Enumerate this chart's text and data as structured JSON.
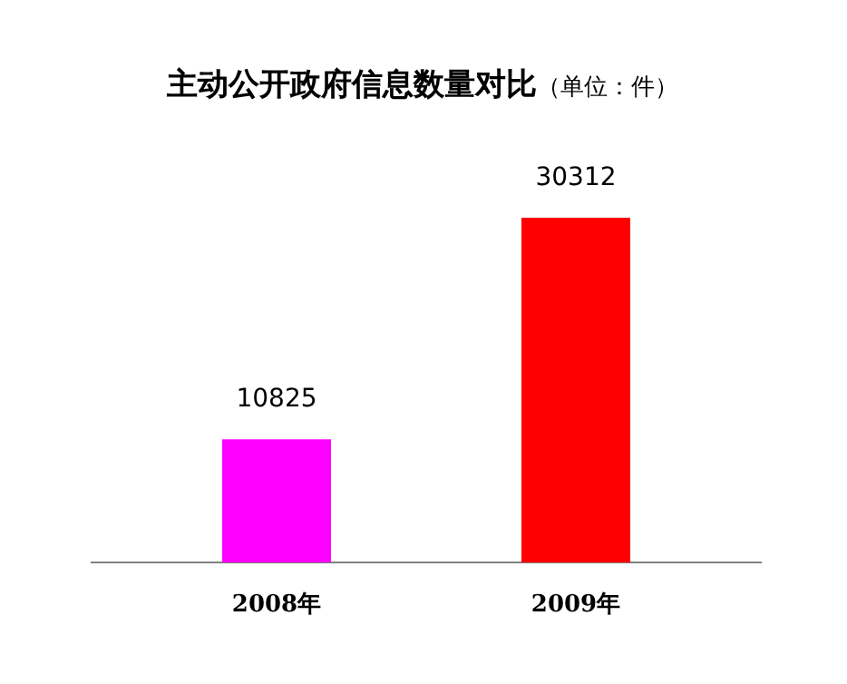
{
  "chart_data": {
    "type": "bar",
    "title": "主动公开政府信息数量对比",
    "subtitle": "（单位：件）",
    "categories": [
      "2008年",
      "2009年"
    ],
    "values": [
      10825,
      30312
    ],
    "colors": [
      "#ff00ff",
      "#ff0000"
    ],
    "data_labels": true
  }
}
